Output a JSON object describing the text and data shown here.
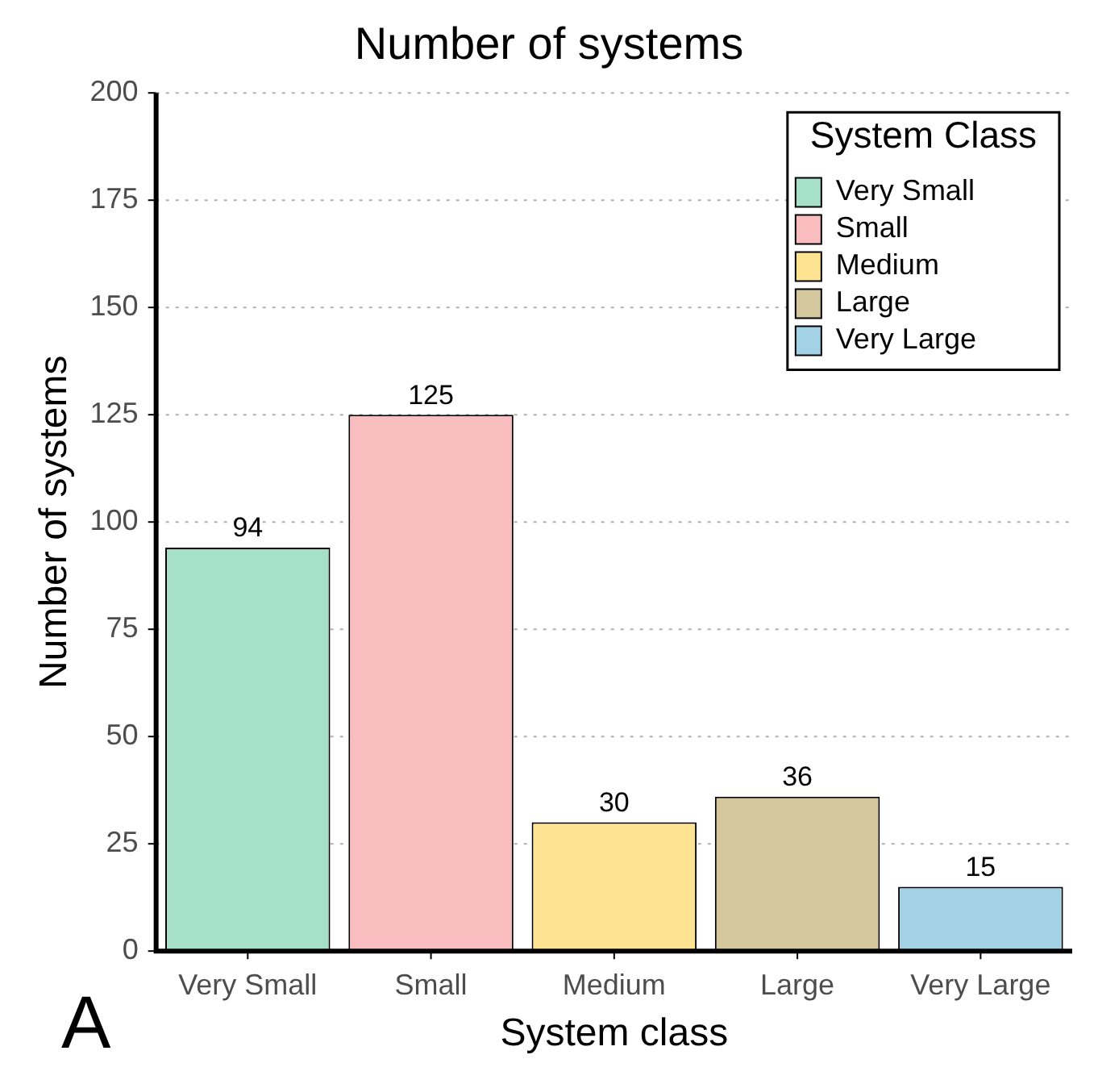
{
  "chart_data": {
    "type": "bar",
    "title": "Number of systems",
    "xlabel": "System class",
    "ylabel": "Number of systems",
    "legend_title": "System Class",
    "categories": [
      "Very Small",
      "Small",
      "Medium",
      "Large",
      "Very Large"
    ],
    "series": [
      {
        "name": "Very Small",
        "color": "#a6e0c9",
        "values": [
          94,
          null,
          null,
          null,
          null
        ]
      },
      {
        "name": "Small",
        "color": "#f9bcbf",
        "values": [
          null,
          125,
          null,
          null,
          null
        ]
      },
      {
        "name": "Medium",
        "color": "#fde392",
        "values": [
          null,
          null,
          30,
          null,
          null
        ]
      },
      {
        "name": "Large",
        "color": "#d4c79e",
        "values": [
          null,
          null,
          null,
          36,
          null
        ]
      },
      {
        "name": "Very Large",
        "color": "#a3d2e7",
        "values": [
          null,
          null,
          null,
          null,
          15
        ]
      }
    ],
    "ylim": [
      0,
      200
    ],
    "yticks": [
      0,
      25,
      50,
      75,
      100,
      125,
      150,
      175,
      200
    ],
    "grid": "y",
    "legend": "top right",
    "data_labels": true,
    "annotations": [
      "A"
    ]
  }
}
